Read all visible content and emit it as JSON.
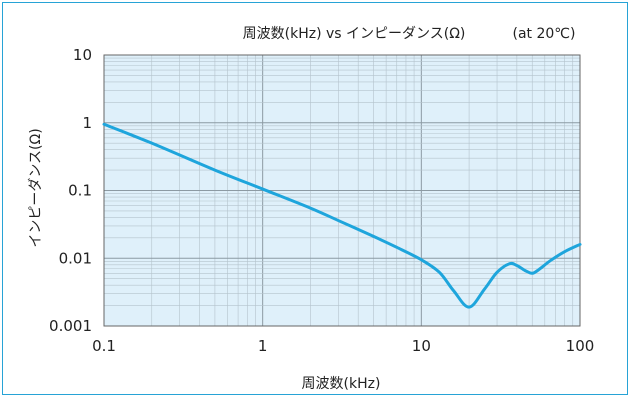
{
  "chart_data": {
    "type": "line",
    "title": "周波数(kHz) vs インピーダンス(Ω)",
    "subtitle": "(at 20℃)",
    "xlabel": "周波数(kHz)",
    "ylabel": "インピーダンス(Ω)",
    "x_scale": "log",
    "y_scale": "log",
    "xlim": [
      0.1,
      100
    ],
    "ylim": [
      0.001,
      10
    ],
    "x_ticks": [
      0.1,
      1,
      10,
      100
    ],
    "x_tick_labels": [
      "0.1",
      "1",
      "10",
      "100"
    ],
    "y_ticks": [
      0.001,
      0.01,
      0.1,
      1,
      10
    ],
    "y_tick_labels": [
      "0.001",
      "0.01",
      "0.1",
      "1",
      "10"
    ],
    "grid": true,
    "series": [
      {
        "color": "#1ea5dc",
        "x": [
          0.1,
          0.2,
          0.5,
          1,
          2,
          3,
          5,
          7,
          10,
          13,
          16,
          20,
          25,
          30,
          36,
          40,
          45,
          50,
          55,
          65,
          80,
          100
        ],
        "y": [
          0.95,
          0.5,
          0.2,
          0.105,
          0.055,
          0.036,
          0.021,
          0.0145,
          0.0095,
          0.0062,
          0.0033,
          0.0019,
          0.0035,
          0.0062,
          0.0083,
          0.0078,
          0.0066,
          0.006,
          0.0068,
          0.0092,
          0.0125,
          0.016
        ]
      }
    ]
  },
  "colors": {
    "frame": "#27a3d6",
    "plot_bg": "#dff0fa",
    "grid_major": "#8c9aa3",
    "grid_minor": "#b4c3cc",
    "line": "#1ea5dc"
  }
}
